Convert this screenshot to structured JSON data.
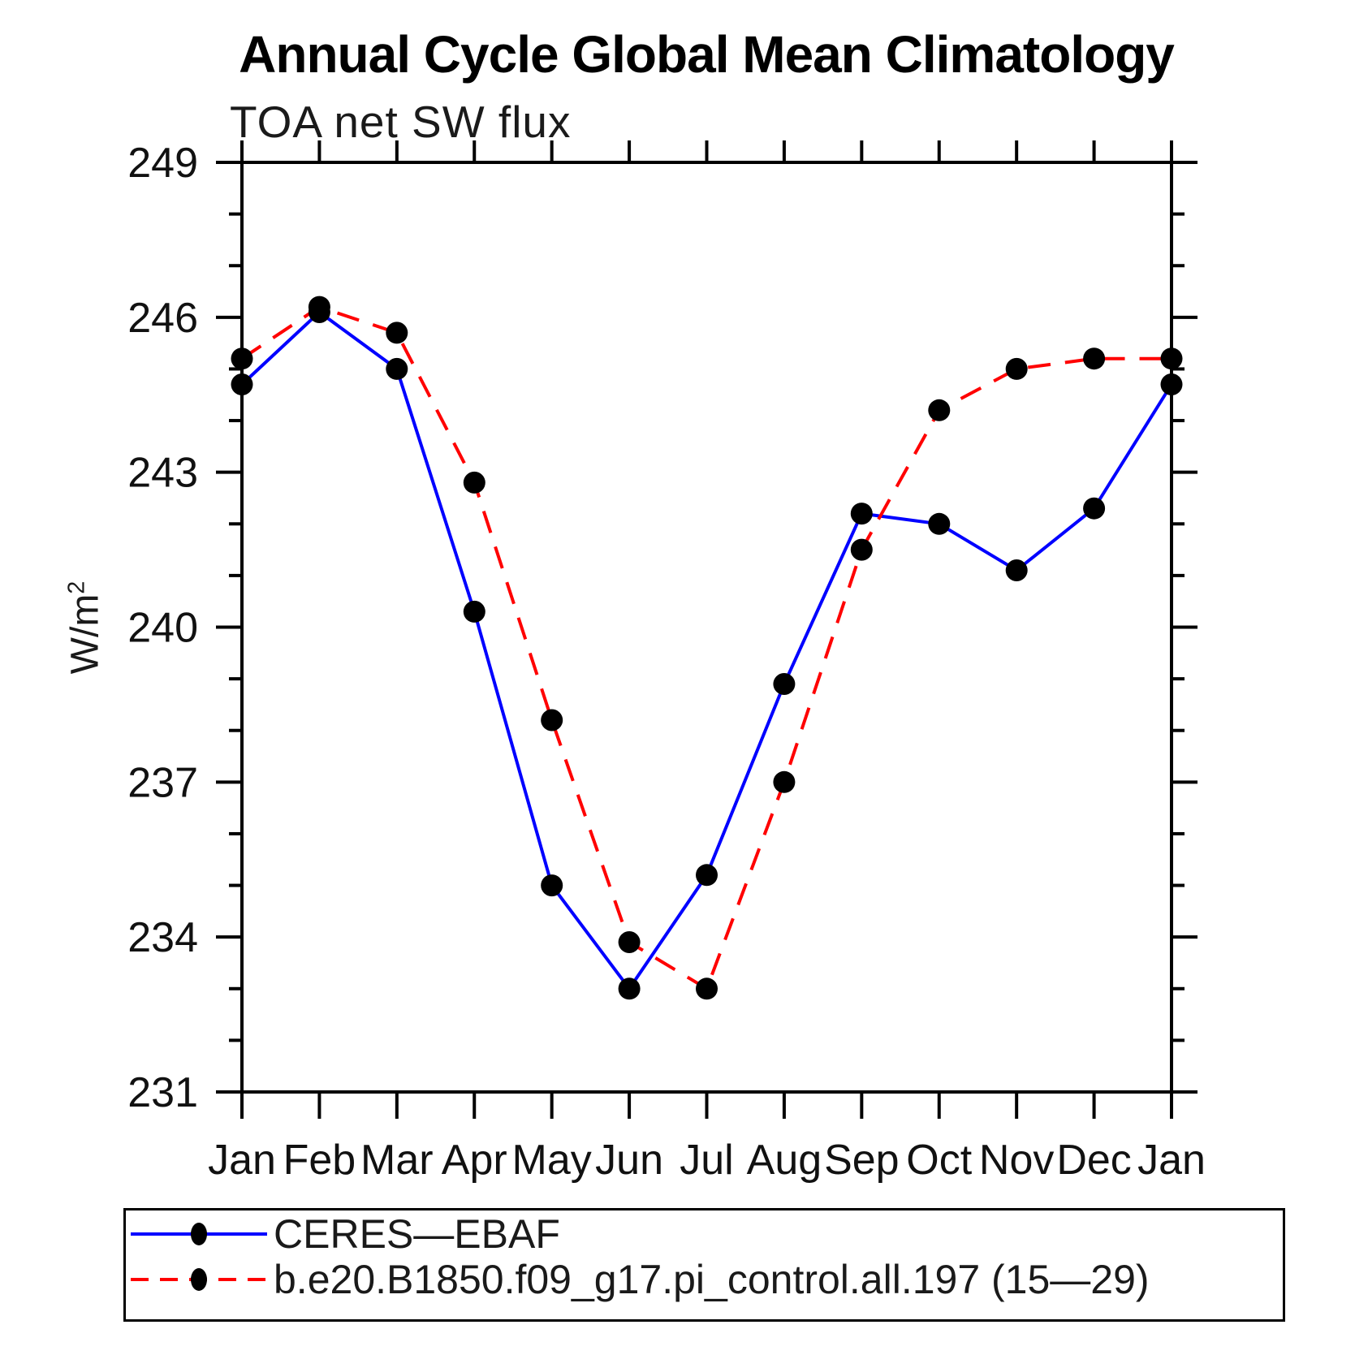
{
  "title": "Annual Cycle Global Mean Climatology",
  "chart_data": {
    "type": "line",
    "title": "Annual Cycle Global Mean Climatology",
    "subtitle": "TOA net SW flux",
    "ylabel": "W/m²",
    "ylabel_base": "W/m",
    "ylabel_exp": "2",
    "x_categories": [
      "Jan",
      "Feb",
      "Mar",
      "Apr",
      "May",
      "Jun",
      "Jul",
      "Aug",
      "Sep",
      "Oct",
      "Nov",
      "Dec",
      "Jan"
    ],
    "ylim": [
      231,
      249
    ],
    "y_major_step": 3,
    "y_minor_step": 1,
    "y_major_ticks": [
      231,
      234,
      237,
      240,
      243,
      246,
      249
    ],
    "grid": false,
    "legend_position": "bottom",
    "axis_color": "#000000",
    "marker_color": "#000000",
    "series": [
      {
        "label": "CERES—EBAF",
        "color": "#0000ff",
        "style": "solid",
        "marker": "circle",
        "values": [
          244.7,
          246.1,
          245.0,
          240.3,
          235.0,
          233.0,
          235.2,
          238.9,
          242.2,
          242.0,
          241.1,
          242.3,
          244.7
        ]
      },
      {
        "label": "b.e20.B1850.f09_g17.pi_control.all.197 (15—29)",
        "color": "#ff0000",
        "style": "dashed",
        "marker": "circle",
        "values": [
          245.2,
          246.2,
          245.7,
          242.8,
          238.2,
          233.9,
          233.0,
          237.0,
          241.5,
          244.2,
          245.0,
          245.2,
          245.2
        ]
      }
    ]
  }
}
